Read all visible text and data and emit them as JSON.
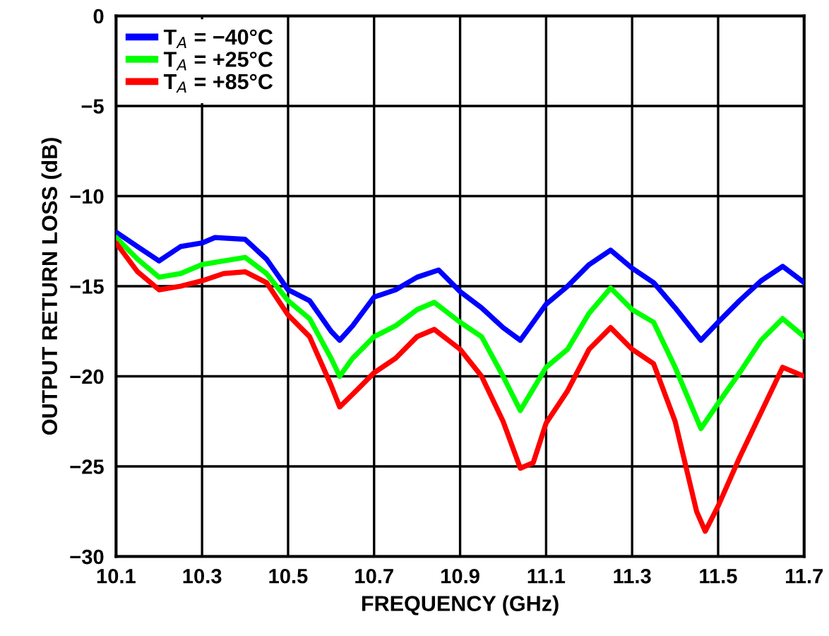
{
  "chart_data": {
    "type": "line",
    "xlabel": "FREQUENCY (GHz)",
    "ylabel": "OUTPUT RETURN LOSS (dB)",
    "xlim": [
      10.1,
      11.7
    ],
    "xticks": [
      10.1,
      10.3,
      10.5,
      10.7,
      10.9,
      11.1,
      11.3,
      11.5,
      11.7
    ],
    "ylim": [
      -30,
      0
    ],
    "yticks": [
      -30,
      -25,
      -20,
      -15,
      -10,
      -5,
      0
    ],
    "grid": true,
    "legend": "top left",
    "series": [
      {
        "name": "T$_{A}$ = −40°C",
        "color": "#0000ff",
        "x": [
          10.1,
          10.15,
          10.2,
          10.25,
          10.3,
          10.33,
          10.4,
          10.45,
          10.5,
          10.55,
          10.6,
          10.62,
          10.65,
          10.7,
          10.75,
          10.8,
          10.85,
          10.9,
          10.95,
          11.0,
          11.04,
          11.1,
          11.15,
          11.2,
          11.25,
          11.3,
          11.35,
          11.4,
          11.46,
          11.5,
          11.55,
          11.6,
          11.65,
          11.7
        ],
        "values": [
          -12.0,
          -12.8,
          -13.6,
          -12.8,
          -12.6,
          -12.3,
          -12.4,
          -13.5,
          -15.2,
          -15.8,
          -17.5,
          -18.0,
          -17.2,
          -15.6,
          -15.2,
          -14.5,
          -14.1,
          -15.3,
          -16.2,
          -17.3,
          -18.0,
          -16.0,
          -15.0,
          -13.8,
          -13.0,
          -14.0,
          -14.8,
          -16.2,
          -18.0,
          -17.0,
          -15.8,
          -14.7,
          -13.9,
          -14.8
        ]
      },
      {
        "name": "T$_{A}$ = +25°C",
        "color": "#00ff00",
        "x": [
          10.1,
          10.15,
          10.2,
          10.25,
          10.3,
          10.35,
          10.4,
          10.45,
          10.5,
          10.55,
          10.6,
          10.62,
          10.65,
          10.7,
          10.75,
          10.8,
          10.84,
          10.9,
          10.95,
          11.0,
          11.04,
          11.1,
          11.15,
          11.2,
          11.25,
          11.3,
          11.35,
          11.4,
          11.46,
          11.5,
          11.55,
          11.6,
          11.65,
          11.7
        ],
        "values": [
          -12.3,
          -13.5,
          -14.5,
          -14.3,
          -13.8,
          -13.6,
          -13.4,
          -14.3,
          -15.8,
          -16.8,
          -19.0,
          -20.0,
          -19.0,
          -17.8,
          -17.2,
          -16.3,
          -15.9,
          -17.0,
          -17.8,
          -20.0,
          -21.9,
          -19.5,
          -18.5,
          -16.5,
          -15.1,
          -16.3,
          -17.0,
          -19.5,
          -22.9,
          -21.5,
          -19.8,
          -18.0,
          -16.8,
          -17.8
        ]
      },
      {
        "name": "T$_{A}$ = +85°C",
        "color": "#ff0000",
        "x": [
          10.1,
          10.15,
          10.2,
          10.25,
          10.3,
          10.35,
          10.4,
          10.45,
          10.5,
          10.55,
          10.6,
          10.62,
          10.65,
          10.7,
          10.75,
          10.8,
          10.84,
          10.9,
          10.95,
          11.0,
          11.04,
          11.07,
          11.1,
          11.15,
          11.2,
          11.25,
          11.3,
          11.35,
          11.4,
          11.45,
          11.47,
          11.5,
          11.55,
          11.6,
          11.65,
          11.7
        ],
        "values": [
          -12.6,
          -14.2,
          -15.2,
          -15.0,
          -14.7,
          -14.3,
          -14.2,
          -14.8,
          -16.6,
          -17.8,
          -20.5,
          -21.7,
          -21.0,
          -19.8,
          -19.0,
          -17.8,
          -17.4,
          -18.5,
          -20.0,
          -22.5,
          -25.1,
          -24.8,
          -22.6,
          -20.8,
          -18.5,
          -17.3,
          -18.5,
          -19.3,
          -22.5,
          -27.5,
          -28.6,
          -27.2,
          -24.5,
          -22.0,
          -19.5,
          -20.0
        ]
      }
    ]
  }
}
